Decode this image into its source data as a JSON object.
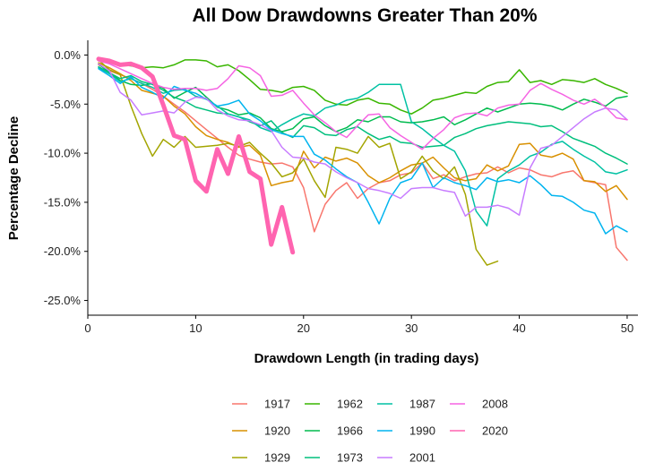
{
  "chart_data": {
    "type": "line",
    "title": "All Dow Drawdowns Greater Than 20%",
    "xlabel": "Drawdown Length (in trading days)",
    "ylabel": "Percentage Decline",
    "xlim": [
      0,
      51
    ],
    "ylim": [
      -26.5,
      1.5
    ],
    "xticks": [
      0,
      10,
      20,
      30,
      40,
      50
    ],
    "xtick_labels": [
      "0",
      "10",
      "20",
      "30",
      "40",
      "50"
    ],
    "yticks": [
      0,
      -5,
      -10,
      -15,
      -20,
      -25
    ],
    "ytick_labels": [
      "0.0%",
      "-5.0%",
      "-10.0%",
      "-15.0%",
      "-20.0%",
      "-25.0%"
    ],
    "grid": false,
    "legend_position": "bottom",
    "series": [
      {
        "name": "1917",
        "color": "#F8766D",
        "width": 1.5,
        "x": [
          1,
          2,
          3,
          4,
          5,
          6,
          7,
          8,
          9,
          10,
          11,
          12,
          13,
          14,
          15,
          16,
          17,
          18,
          19,
          20,
          21,
          22,
          23,
          24,
          25,
          26,
          27,
          28,
          29,
          30,
          31,
          32,
          33,
          34,
          35,
          36,
          37,
          38,
          39,
          40,
          41,
          42,
          43,
          44,
          45,
          46,
          47,
          48,
          49,
          50
        ],
        "y": [
          -1.0,
          -1.6,
          -2.0,
          -2.4,
          -2.9,
          -3.5,
          -4.2,
          -5.0,
          -5.8,
          -6.7,
          -7.6,
          -8.5,
          -9.4,
          -10.2,
          -10.6,
          -10.9,
          -11.1,
          -11.0,
          -11.4,
          -13.5,
          -18.0,
          -15.2,
          -13.8,
          -13.0,
          -14.6,
          -13.6,
          -13.0,
          -12.8,
          -12.2,
          -12.0,
          -11.0,
          -12.6,
          -12.2,
          -12.8,
          -12.4,
          -12.1,
          -12.0,
          -11.4,
          -12.0,
          -11.5,
          -11.7,
          -12.2,
          -12.4,
          -12.0,
          -11.8,
          -12.8,
          -13.0,
          -13.2,
          -19.6,
          -20.9
        ]
      },
      {
        "name": "1920",
        "color": "#D89000",
        "width": 1.5,
        "x": [
          1,
          2,
          3,
          4,
          5,
          6,
          7,
          8,
          9,
          10,
          11,
          12,
          13,
          14,
          15,
          16,
          17,
          18,
          19,
          20,
          21,
          22,
          23,
          24,
          25,
          26,
          27,
          28,
          29,
          30,
          31,
          32,
          33,
          34,
          35,
          36,
          37,
          38,
          39,
          40,
          41,
          42,
          43,
          44,
          45,
          46,
          47,
          48,
          49,
          50
        ],
        "y": [
          -0.8,
          -1.3,
          -1.9,
          -2.6,
          -3.6,
          -3.9,
          -4.2,
          -5.2,
          -6.0,
          -7.3,
          -8.2,
          -8.6,
          -8.9,
          -9.4,
          -9.2,
          -10.2,
          -13.3,
          -13.0,
          -12.8,
          -9.8,
          -11.5,
          -10.4,
          -10.8,
          -10.5,
          -11.0,
          -12.3,
          -13.0,
          -12.5,
          -11.8,
          -11.2,
          -11.0,
          -10.4,
          -11.5,
          -12.5,
          -12.8,
          -12.6,
          -11.2,
          -11.8,
          -11.3,
          -9.1,
          -9.0,
          -10.2,
          -10.4,
          -10.0,
          -10.6,
          -12.8,
          -12.9,
          -13.9,
          -13.3,
          -14.7
        ]
      },
      {
        "name": "1929",
        "color": "#A3A500",
        "width": 1.5,
        "x": [
          1,
          2,
          3,
          4,
          5,
          6,
          7,
          8,
          9,
          10,
          11,
          12,
          13,
          14,
          15,
          16,
          17,
          18,
          19,
          20,
          21,
          22,
          23,
          24,
          25,
          26,
          27,
          28,
          29,
          30,
          31,
          32,
          33,
          34,
          35,
          36,
          37,
          38
        ],
        "y": [
          -0.5,
          -1.5,
          -2.0,
          -5.2,
          -8.0,
          -10.3,
          -8.6,
          -9.4,
          -8.3,
          -9.4,
          -9.3,
          -9.2,
          -9.0,
          -9.3,
          -8.9,
          -10.0,
          -11.0,
          -12.4,
          -12.0,
          -10.6,
          -12.8,
          -14.5,
          -9.4,
          -9.6,
          -10.0,
          -8.3,
          -9.4,
          -9.0,
          -12.6,
          -11.9,
          -10.3,
          -11.8,
          -12.6,
          -11.4,
          -14.2,
          -19.8,
          -21.4,
          -21.0
        ]
      },
      {
        "name": "1962",
        "color": "#39B600",
        "width": 1.5,
        "x": [
          1,
          2,
          3,
          4,
          5,
          6,
          7,
          8,
          9,
          10,
          11,
          12,
          13,
          14,
          15,
          16,
          17,
          18,
          19,
          20,
          21,
          22,
          23,
          24,
          25,
          26,
          27,
          28,
          29,
          30,
          31,
          32,
          33,
          34,
          35,
          36,
          37,
          38,
          39,
          40,
          41,
          42,
          43,
          44,
          45,
          46,
          47,
          48,
          49,
          50
        ],
        "y": [
          -0.5,
          -0.8,
          -1.0,
          -1.1,
          -1.3,
          -1.2,
          -1.3,
          -1.0,
          -0.5,
          -0.5,
          -0.6,
          -1.2,
          -1.0,
          -1.6,
          -2.5,
          -3.5,
          -3.6,
          -3.8,
          -3.3,
          -3.2,
          -3.6,
          -4.6,
          -5.0,
          -5.1,
          -4.6,
          -4.4,
          -4.9,
          -5.0,
          -5.6,
          -6.0,
          -5.4,
          -4.6,
          -4.4,
          -4.1,
          -3.8,
          -3.9,
          -3.2,
          -2.8,
          -2.7,
          -1.5,
          -2.8,
          -2.6,
          -3.0,
          -2.5,
          -2.6,
          -2.8,
          -2.4,
          -3.0,
          -3.4,
          -3.9
        ]
      },
      {
        "name": "1966",
        "color": "#00BB4E",
        "width": 1.5,
        "x": [
          1,
          2,
          3,
          4,
          5,
          6,
          7,
          8,
          9,
          10,
          11,
          12,
          13,
          14,
          15,
          16,
          17,
          18,
          19,
          20,
          21,
          22,
          23,
          24,
          25,
          26,
          27,
          28,
          29,
          30,
          31,
          32,
          33,
          34,
          35,
          36,
          37,
          38,
          39,
          40,
          41,
          42,
          43,
          44,
          45,
          46,
          47,
          48,
          49,
          50
        ],
        "y": [
          -0.9,
          -1.8,
          -2.6,
          -3.0,
          -3.1,
          -2.9,
          -3.4,
          -4.4,
          -3.8,
          -3.3,
          -4.3,
          -5.3,
          -5.6,
          -6.1,
          -5.9,
          -6.4,
          -7.5,
          -7.8,
          -7.5,
          -6.5,
          -6.3,
          -7.2,
          -7.8,
          -7.4,
          -6.6,
          -6.8,
          -6.3,
          -6.3,
          -6.8,
          -6.9,
          -6.8,
          -6.6,
          -6.3,
          -7.1,
          -6.6,
          -6.0,
          -5.4,
          -5.8,
          -5.4,
          -5.0,
          -4.9,
          -5.0,
          -5.2,
          -5.6,
          -5.0,
          -4.5,
          -4.8,
          -5.2,
          -4.4,
          -4.2
        ]
      },
      {
        "name": "1973",
        "color": "#00BF7D",
        "width": 1.5,
        "x": [
          1,
          2,
          3,
          4,
          5,
          6,
          7,
          8,
          9,
          10,
          11,
          12,
          13,
          14,
          15,
          16,
          17,
          18,
          19,
          20,
          21,
          22,
          23,
          24,
          25,
          26,
          27,
          28,
          29,
          30,
          31,
          32,
          33,
          34,
          35,
          36,
          37,
          38,
          39,
          40,
          41,
          42,
          43,
          44,
          45,
          46,
          47,
          48,
          49,
          50
        ],
        "y": [
          -1.2,
          -1.8,
          -2.4,
          -2.1,
          -2.7,
          -3.0,
          -3.6,
          -4.3,
          -4.7,
          -5.3,
          -5.6,
          -5.9,
          -6.0,
          -6.3,
          -6.8,
          -7.2,
          -6.7,
          -7.9,
          -8.4,
          -7.2,
          -7.4,
          -8.1,
          -8.2,
          -7.6,
          -7.3,
          -8.0,
          -8.6,
          -8.3,
          -8.9,
          -9.0,
          -9.4,
          -9.3,
          -9.2,
          -8.4,
          -8.0,
          -7.5,
          -7.2,
          -7.0,
          -6.8,
          -6.9,
          -7.0,
          -7.3,
          -7.2,
          -7.8,
          -8.5,
          -8.9,
          -9.3,
          -10.0,
          -10.5,
          -11.1
        ]
      },
      {
        "name": "1987",
        "color": "#00C1A3",
        "width": 1.5,
        "x": [
          1,
          2,
          3,
          4,
          5,
          6,
          7,
          8,
          9,
          10,
          11,
          12,
          13,
          14,
          15,
          16,
          17,
          18,
          19,
          20,
          21,
          22,
          23,
          24,
          25,
          26,
          27,
          28,
          29,
          30,
          31,
          32,
          33,
          34,
          35,
          36,
          37,
          38,
          39,
          40,
          41,
          42,
          43,
          44,
          45,
          46,
          47,
          48,
          49,
          50
        ],
        "y": [
          -1.3,
          -1.9,
          -2.7,
          -2.4,
          -2.9,
          -3.3,
          -3.9,
          -3.6,
          -3.5,
          -4.2,
          -4.5,
          -5.2,
          -6.0,
          -6.3,
          -6.6,
          -7.4,
          -7.8,
          -7.1,
          -6.5,
          -6.0,
          -6.2,
          -5.4,
          -5.1,
          -4.6,
          -4.4,
          -3.8,
          -3.0,
          -3.0,
          -3.0,
          -6.8,
          -7.5,
          -8.4,
          -9.2,
          -9.8,
          -11.8,
          -15.9,
          -17.4,
          -12.6,
          -11.8,
          -11.2,
          -10.3,
          -9.9,
          -9.1,
          -8.8,
          -9.6,
          -10.3,
          -10.9,
          -11.9,
          -12.1,
          -11.7
        ]
      },
      {
        "name": "1990",
        "color": "#00B4EF",
        "width": 1.5,
        "x": [
          1,
          2,
          3,
          4,
          5,
          6,
          7,
          8,
          9,
          10,
          11,
          12,
          13,
          14,
          15,
          16,
          17,
          18,
          19,
          20,
          21,
          22,
          23,
          24,
          25,
          26,
          27,
          28,
          29,
          30,
          31,
          32,
          33,
          34,
          35,
          36,
          37,
          38,
          39,
          40,
          41,
          42,
          43,
          44,
          45,
          46,
          47,
          48,
          49,
          50
        ],
        "y": [
          -1.4,
          -2.1,
          -2.9,
          -2.2,
          -3.3,
          -3.8,
          -4.4,
          -3.2,
          -3.6,
          -3.9,
          -4.5,
          -5.2,
          -5.0,
          -4.6,
          -6.0,
          -6.7,
          -7.6,
          -8.0,
          -8.3,
          -8.3,
          -10.1,
          -10.7,
          -11.6,
          -12.4,
          -13.0,
          -15.0,
          -17.2,
          -14.6,
          -13.0,
          -12.6,
          -11.0,
          -13.5,
          -12.5,
          -13.0,
          -13.3,
          -13.7,
          -12.5,
          -12.9,
          -12.7,
          -13.0,
          -12.3,
          -13.2,
          -14.3,
          -14.4,
          -15.0,
          -15.8,
          -16.1,
          -18.2,
          -17.4,
          -18.0
        ]
      },
      {
        "name": "2001",
        "color": "#C77CFF",
        "width": 1.5,
        "x": [
          1,
          2,
          3,
          4,
          5,
          6,
          7,
          8,
          9,
          10,
          11,
          12,
          13,
          14,
          15,
          16,
          17,
          18,
          19,
          20,
          21,
          22,
          23,
          24,
          25,
          26,
          27,
          28,
          29,
          30,
          31,
          32,
          33,
          34,
          35,
          36,
          37,
          38,
          39,
          40,
          41,
          42,
          43,
          44,
          45,
          46,
          47,
          48,
          49,
          50
        ],
        "y": [
          -0.9,
          -1.6,
          -3.8,
          -4.6,
          -6.1,
          -5.9,
          -5.7,
          -5.9,
          -4.8,
          -4.3,
          -4.4,
          -5.6,
          -6.2,
          -6.6,
          -6.7,
          -7.1,
          -7.7,
          -9.4,
          -10.4,
          -10.5,
          -10.9,
          -11.1,
          -11.9,
          -12.5,
          -13.0,
          -13.6,
          -13.8,
          -14.1,
          -14.6,
          -13.6,
          -13.5,
          -13.5,
          -13.8,
          -14.0,
          -16.4,
          -15.5,
          -15.5,
          -15.3,
          -15.6,
          -16.3,
          -11.5,
          -9.5,
          -9.2,
          -8.3,
          -7.4,
          -6.5,
          -5.8,
          -5.4,
          -5.6,
          -6.6
        ]
      },
      {
        "name": "2008",
        "color": "#F564E3",
        "width": 1.5,
        "x": [
          1,
          2,
          3,
          4,
          5,
          6,
          7,
          8,
          9,
          10,
          11,
          12,
          13,
          14,
          15,
          16,
          17,
          18,
          19,
          20,
          21,
          22,
          23,
          24,
          25,
          26,
          27,
          28,
          29,
          30,
          31,
          32,
          33,
          34,
          35,
          36,
          37,
          38,
          39,
          40,
          41,
          42,
          43,
          44,
          45,
          46,
          47,
          48,
          49,
          50
        ],
        "y": [
          -0.6,
          -0.9,
          -1.4,
          -1.9,
          -2.4,
          -2.9,
          -3.3,
          -3.5,
          -3.4,
          -3.4,
          -3.6,
          -3.4,
          -2.4,
          -1.1,
          -1.3,
          -2.1,
          -4.2,
          -4.1,
          -3.6,
          -4.9,
          -6.1,
          -6.9,
          -7.8,
          -8.4,
          -7.2,
          -6.1,
          -6.0,
          -7.4,
          -8.2,
          -8.9,
          -9.6,
          -8.5,
          -7.6,
          -6.4,
          -6.0,
          -5.9,
          -6.2,
          -5.4,
          -5.1,
          -5.0,
          -3.6,
          -2.9,
          -3.5,
          -4.0,
          -4.6,
          -5.0,
          -4.5,
          -5.3,
          -6.4,
          -6.6
        ]
      },
      {
        "name": "2020",
        "color": "#FF64B0",
        "width": 5,
        "x": [
          1,
          2,
          3,
          4,
          5,
          6,
          7,
          8,
          9,
          10,
          11,
          12,
          13,
          14,
          15,
          16,
          17,
          18,
          19
        ],
        "y": [
          -0.4,
          -0.6,
          -1.0,
          -0.9,
          -1.3,
          -2.2,
          -5.1,
          -8.2,
          -8.6,
          -12.8,
          -13.9,
          -9.6,
          -12.1,
          -8.3,
          -11.9,
          -12.6,
          -19.3,
          -15.5,
          -20.1
        ]
      }
    ]
  }
}
